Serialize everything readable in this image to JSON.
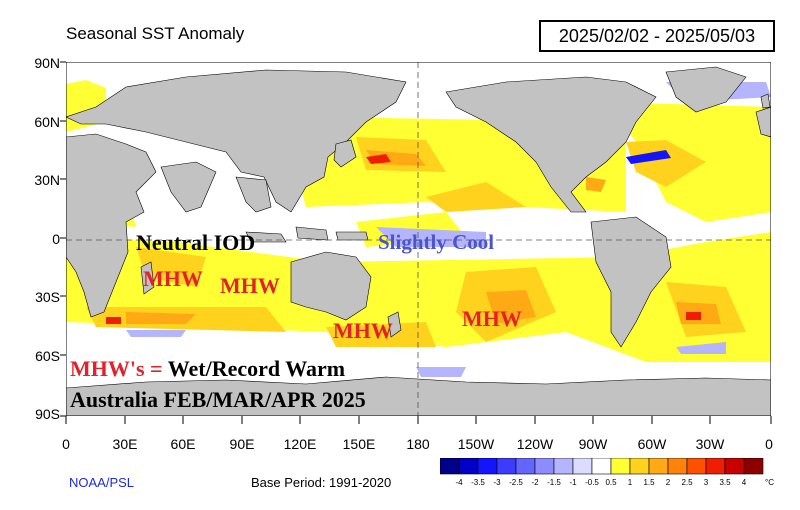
{
  "header": {
    "title": "Seasonal SST Anomaly",
    "date_range": "2025/02/02 - 2025/05/03"
  },
  "axes": {
    "lat_labels": [
      "90N",
      "60N",
      "30N",
      "0",
      "30S",
      "60S",
      "90S"
    ],
    "lon_labels": [
      "0",
      "30E",
      "60E",
      "90E",
      "120E",
      "150E",
      "180",
      "150W",
      "120W",
      "90W",
      "60W",
      "30W",
      "0"
    ]
  },
  "annotations": {
    "neutral_iod": "Neutral IOD",
    "slightly_cool": "Slightly Cool",
    "mhw_1": "MHW",
    "mhw_2": "MHW",
    "mhw_3": "MHW",
    "mhw_4": "MHW",
    "legend_red": "MHW's = ",
    "legend_black": "Wet/Record Warm",
    "region_line": "Australia FEB/MAR/APR 2025"
  },
  "footer": {
    "credit": "NOAA/PSL",
    "base_period": "Base Period: 1991-2020"
  },
  "colorbar": {
    "ticks": [
      "-4",
      "-3.5",
      "-3",
      "-2.5",
      "-2",
      "-1.5",
      "-1",
      "-0.5",
      "0.5",
      "1",
      "1.5",
      "2",
      "2.5",
      "3",
      "3.5",
      "4"
    ],
    "unit": "°C",
    "colors": [
      "#00008c",
      "#0000c8",
      "#1414ff",
      "#3c3cff",
      "#6464ff",
      "#8c8cff",
      "#b4b4ff",
      "#dcdcff",
      "#ffffff",
      "#ffff33",
      "#ffd21e",
      "#ffaa14",
      "#ff820a",
      "#ff5000",
      "#f01e00",
      "#c80000",
      "#8c0000"
    ]
  },
  "colors": {
    "land": "#c2c2c2",
    "ocean": "#ffffff",
    "warm_weak": "#ffff33",
    "warm_moderate": "#ffd21e"
  }
}
